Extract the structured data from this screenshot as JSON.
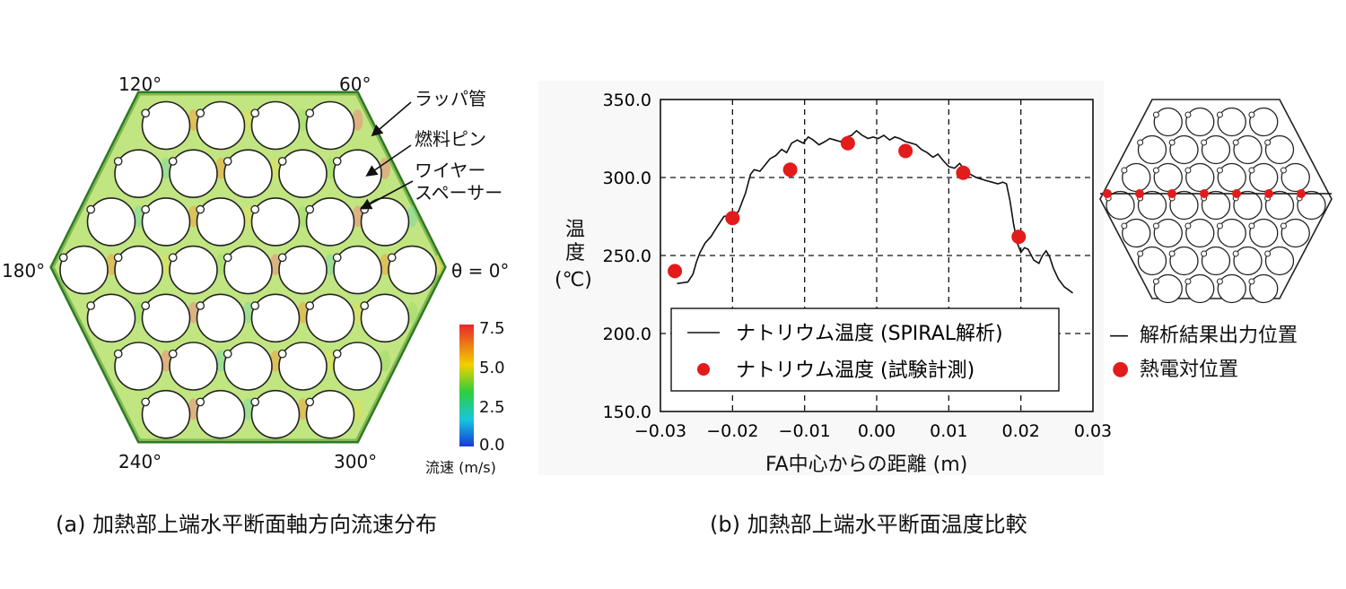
{
  "panel_a": {
    "angles": {
      "a120": "120°",
      "a60": "60°",
      "a180": "180°",
      "a0": "θ = 0°",
      "a240": "240°",
      "a300": "300°"
    },
    "labels": {
      "wrapper": "ラッパ管",
      "fuel_pin": "燃料ピン",
      "wire_spacer_1": "ワイヤー",
      "wire_spacer_2": "スペーサー"
    },
    "colorbar": {
      "ticks": [
        "7.5",
        "5.0",
        "2.5",
        "0.0"
      ],
      "title": "流速 (m/s)",
      "colors": [
        "#e8262b",
        "#f2d000",
        "#2fcf3a",
        "#17c7e0",
        "#1638d8"
      ]
    },
    "caption": "(a) 加熱部上端水平断面軸方向流速分布"
  },
  "panel_b": {
    "caption": "(b) 加熱部上端水平断面温度比較",
    "ylabel_1": "温",
    "ylabel_2": "度",
    "ylabel_3": "(℃)",
    "xlabel": "FA中心からの距離 (m)",
    "legend": {
      "line": "ナトリウム温度 (SPIRAL解析)",
      "points": "ナトリウム温度 (試験計測)"
    },
    "mini_legend": {
      "line": "解析結果出力位置",
      "points": "熱電対位置"
    }
  },
  "chart_data": {
    "type": "line",
    "xlim": [
      -0.03,
      0.03
    ],
    "ylim": [
      150.0,
      350.0
    ],
    "x_ticks": [
      "−0.03",
      "−0.02",
      "−0.01",
      "0.00",
      "0.01",
      "0.02",
      "0.03"
    ],
    "y_ticks": [
      "350.0",
      "300.0",
      "250.0",
      "200.0",
      "150.0"
    ],
    "grid": true,
    "series": [
      {
        "name": "ナトリウム温度 (SPIRAL解析)",
        "style": "line",
        "color": "#111111",
        "x": [
          -0.0277,
          -0.0262,
          -0.0255,
          -0.025,
          -0.0245,
          -0.0238,
          -0.023,
          -0.0222,
          -0.0212,
          -0.0202,
          -0.0192,
          -0.0182,
          -0.0175,
          -0.017,
          -0.0162,
          -0.0155,
          -0.0148,
          -0.014,
          -0.0132,
          -0.0125,
          -0.0118,
          -0.011,
          -0.0102,
          -0.0095,
          -0.0088,
          -0.008,
          -0.0072,
          -0.0065,
          -0.0058,
          -0.005,
          -0.0042,
          -0.0035,
          -0.0028,
          -0.002,
          -0.0012,
          -0.0005,
          0.0002,
          0.001,
          0.0018,
          0.0025,
          0.0032,
          0.004,
          0.0048,
          0.0055,
          0.0062,
          0.007,
          0.0078,
          0.0085,
          0.0092,
          0.01,
          0.0108,
          0.0115,
          0.0122,
          0.013,
          0.0138,
          0.0145,
          0.0152,
          0.016,
          0.0168,
          0.0175,
          0.018,
          0.0185,
          0.019,
          0.0195,
          0.02,
          0.0205,
          0.021,
          0.0218,
          0.0225,
          0.023,
          0.0235,
          0.024,
          0.0245,
          0.0252,
          0.026,
          0.0272
        ],
        "values": [
          232,
          233,
          238,
          246,
          252,
          258,
          262,
          268,
          275,
          276,
          278,
          290,
          302,
          305,
          304,
          308,
          312,
          314,
          318,
          316,
          322,
          324,
          322,
          326,
          324,
          321,
          323,
          325,
          324,
          323,
          326,
          327,
          330,
          327,
          325,
          326,
          325,
          327,
          324,
          326,
          325,
          323,
          322,
          321,
          318,
          316,
          313,
          315,
          311,
          307,
          306,
          309,
          305,
          302,
          300,
          299,
          298,
          297,
          296,
          297,
          296,
          285,
          270,
          258,
          252,
          255,
          254,
          247,
          245,
          250,
          253,
          249,
          242,
          235,
          230,
          226
        ],
        "data_labels": []
      },
      {
        "name": "ナトリウム温度 (試験計測)",
        "style": "points",
        "color": "#e31b1b",
        "x": [
          -0.028,
          -0.02,
          -0.012,
          -0.004,
          0.004,
          0.012,
          0.0197
        ],
        "values": [
          240,
          274,
          305,
          322,
          317,
          303,
          262
        ]
      }
    ]
  }
}
